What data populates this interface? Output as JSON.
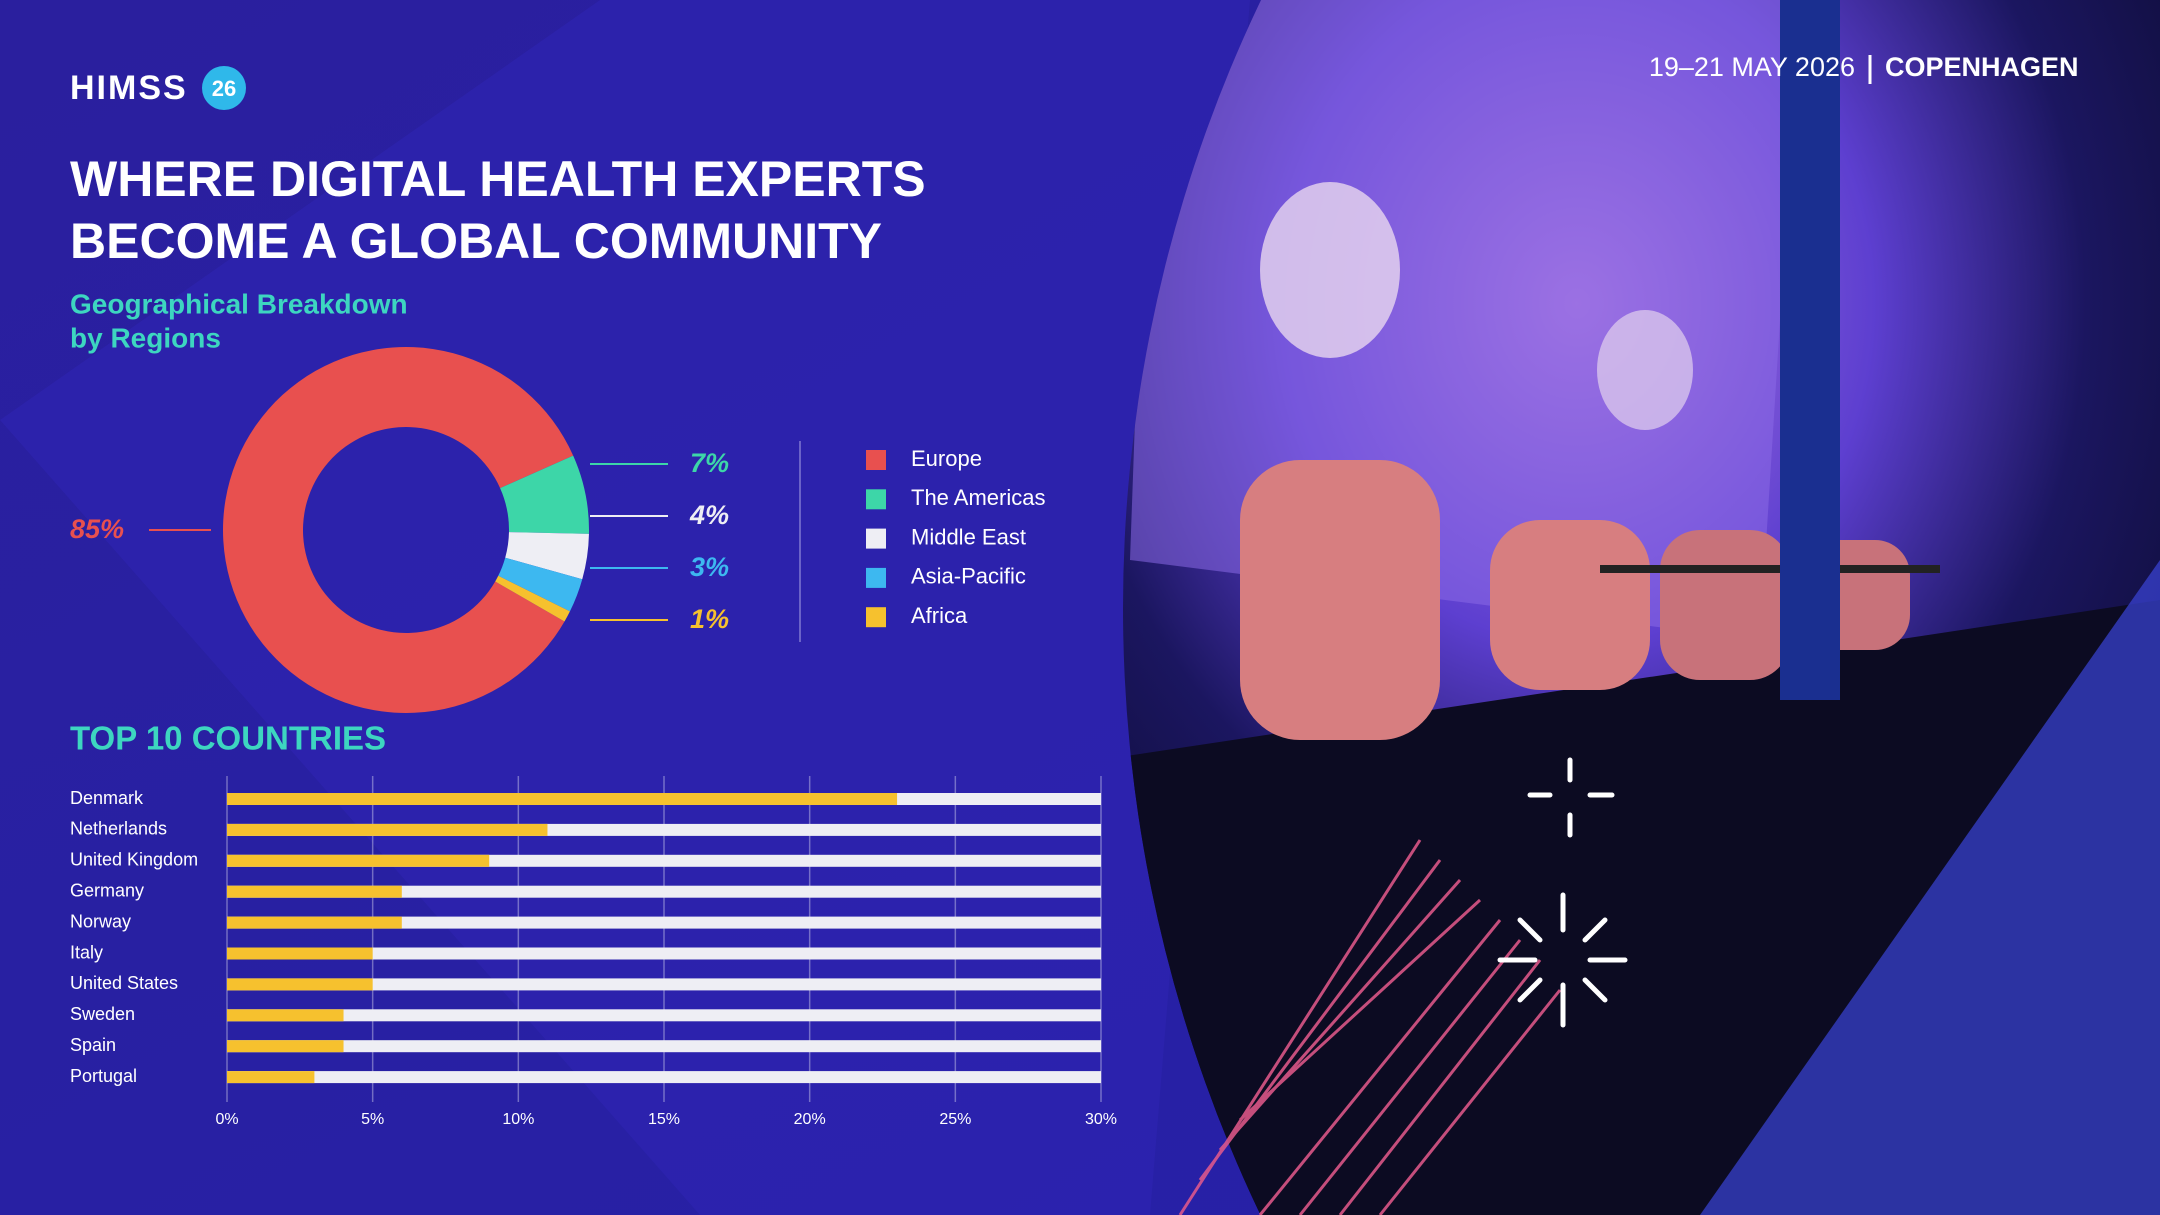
{
  "header": {
    "logo": "HIMSS",
    "edition": "26",
    "date": "19–21 MAY 2026",
    "location": "COPENHAGEN",
    "title": [
      "WHERE DIGITAL HEALTH EXPERTS",
      "BECOME A GLOBAL COMMUNITY"
    ]
  },
  "chart_data": [
    {
      "type": "pie",
      "title": [
        "Geographical Breakdown",
        "by Regions"
      ],
      "categories": [
        "Europe",
        "The Americas",
        "Middle East",
        "Asia-Pacific",
        "Africa"
      ],
      "values": [
        85,
        7,
        4,
        3,
        1
      ],
      "value_labels": [
        "85%",
        "7%",
        "4%",
        "3%",
        "1%"
      ],
      "colors": [
        "#e8504f",
        "#3dd6a8",
        "#eeeef4",
        "#3db8f0",
        "#f6c12e"
      ],
      "donut": true
    },
    {
      "type": "bar",
      "orientation": "horizontal",
      "title": "TOP 10 COUNTRIES",
      "categories": [
        "Denmark",
        "Netherlands",
        "United Kingdom",
        "Germany",
        "Norway",
        "Italy",
        "United States",
        "Sweden",
        "Spain",
        "Portugal"
      ],
      "values": [
        23,
        11,
        9,
        6,
        6,
        5,
        5,
        4,
        4,
        3
      ],
      "color": "#f6c12e",
      "xlim": [
        0,
        30
      ],
      "xticks": [
        {
          "value": 0,
          "label": "0%"
        },
        {
          "value": 5,
          "label": "5%"
        },
        {
          "value": 10,
          "label": "10%"
        },
        {
          "value": 15,
          "label": "15%"
        },
        {
          "value": 20,
          "label": "20%"
        },
        {
          "value": 25,
          "label": "25%"
        },
        {
          "value": 30,
          "label": "30%"
        }
      ],
      "grid": true
    }
  ]
}
